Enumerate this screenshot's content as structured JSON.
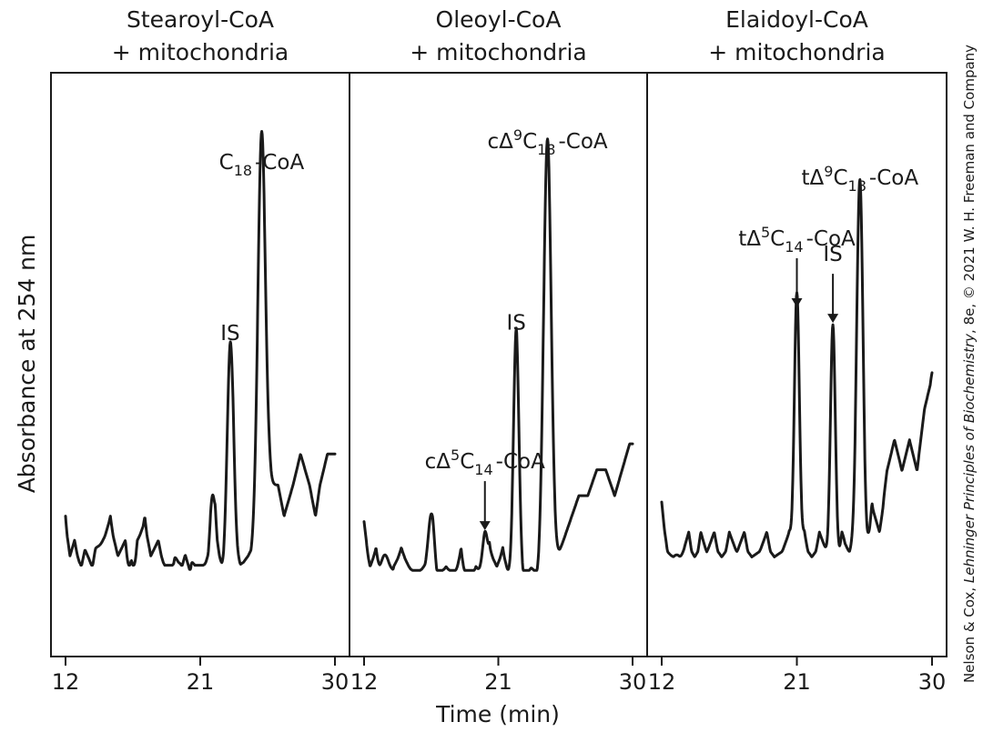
{
  "chart_data": {
    "type": "line",
    "ylabel": "Absorbance at 254 nm",
    "xlabel": "Time (min)",
    "xlim": [
      12,
      30
    ],
    "xticks": [
      12,
      21,
      30
    ],
    "ylim": [
      0,
      100
    ],
    "credit": {
      "prefix": "Nelson & Cox, ",
      "title": "Lehninger Principles of Biochemistry",
      "suffix": ", 8e, © 2021 W. H. Freeman and Company"
    },
    "panels": [
      {
        "title_line1": "Stearoyl-CoA",
        "title_line2": "+ mitochondria",
        "baseline": [
          [
            12,
            8
          ],
          [
            12.3,
            10
          ],
          [
            12.6,
            9
          ],
          [
            13,
            11
          ],
          [
            13.3,
            15
          ],
          [
            13.6,
            13
          ],
          [
            14,
            10
          ],
          [
            14.5,
            9
          ],
          [
            15,
            8
          ],
          [
            15.5,
            10
          ],
          [
            16,
            9
          ],
          [
            16.4,
            13
          ],
          [
            16.8,
            9
          ],
          [
            17.3,
            8
          ],
          [
            17.7,
            10
          ],
          [
            18.2,
            9
          ],
          [
            18.8,
            12
          ],
          [
            19.3,
            10
          ],
          [
            19.7,
            11
          ],
          [
            20,
            14
          ],
          [
            20.4,
            10
          ],
          [
            20.8,
            12
          ],
          [
            21.3,
            11
          ],
          [
            21.7,
            9
          ],
          [
            22,
            8
          ],
          [
            22.7,
            13
          ],
          [
            23.2,
            9
          ],
          [
            23.7,
            11
          ],
          [
            24.2,
            10
          ],
          [
            24.7,
            9
          ],
          [
            25.2,
            8
          ],
          [
            25.6,
            7
          ],
          [
            26.2,
            7
          ],
          [
            26.6,
            8
          ],
          [
            27.2,
            7
          ],
          [
            27.7,
            6
          ],
          [
            28.3,
            7
          ],
          [
            28.7,
            8
          ],
          [
            29,
            7
          ],
          [
            29.5,
            6
          ],
          [
            30,
            6
          ]
        ],
        "peaks": [
          {
            "t": 23.0,
            "h": 53,
            "w": 0.45,
            "label": "IS"
          },
          {
            "t": 25.1,
            "h": 86,
            "w": 0.55,
            "label_prefix": "C",
            "label_sub": "18",
            "label_suffix": "-CoA"
          },
          {
            "t": 21.8,
            "h": 18,
            "w": 0.3
          },
          {
            "t": 14.0,
            "h": 12,
            "w": 0.5
          },
          {
            "t": 16.9,
            "h": 7,
            "w": 0.3
          },
          {
            "t": 19.0,
            "h": 8,
            "w": 0.3
          },
          {
            "t": 20.2,
            "h": 9,
            "w": 0.3
          }
        ]
      },
      {
        "title_line1": "Oleoyl-CoA",
        "title_line2": "+ mitochondria",
        "baseline": [
          [
            12,
            7
          ],
          [
            12.4,
            9
          ],
          [
            12.8,
            8
          ],
          [
            13.2,
            10
          ],
          [
            13.6,
            12
          ],
          [
            14,
            9
          ],
          [
            14.5,
            8
          ],
          [
            15,
            9
          ],
          [
            15.5,
            10
          ],
          [
            16,
            9
          ],
          [
            16.6,
            8
          ],
          [
            17,
            10
          ],
          [
            17.5,
            9
          ],
          [
            18,
            10
          ],
          [
            18.5,
            8
          ],
          [
            19,
            11
          ],
          [
            19.5,
            9
          ],
          [
            20,
            10
          ],
          [
            20.4,
            8
          ],
          [
            20.9,
            9
          ],
          [
            21.3,
            8
          ],
          [
            21.8,
            10
          ],
          [
            22.2,
            9
          ],
          [
            22.7,
            11
          ],
          [
            23.2,
            9
          ],
          [
            23.6,
            10
          ],
          [
            24,
            8
          ],
          [
            24.6,
            9
          ],
          [
            25.2,
            8
          ],
          [
            25.8,
            7
          ],
          [
            26.4,
            6
          ],
          [
            27,
            6
          ],
          [
            27.6,
            5
          ],
          [
            28.2,
            5
          ],
          [
            28.8,
            6
          ],
          [
            29.3,
            5
          ],
          [
            29.8,
            4
          ],
          [
            30,
            4
          ]
        ],
        "peaks": [
          {
            "t": 22.2,
            "h": 55,
            "w": 0.4,
            "label": "IS"
          },
          {
            "t": 24.3,
            "h": 90,
            "w": 0.55,
            "label_prefix": "cΔ",
            "label_sup": "9",
            "label_mid": "C",
            "label_sub": "18",
            "label_suffix": "-CoA"
          },
          {
            "t": 20.1,
            "h": 17,
            "w": 0.35,
            "label_prefix": "cΔ",
            "label_sup": "5",
            "label_mid": "C",
            "label_sub": "14",
            "label_suffix": "-CoA",
            "arrow": true
          },
          {
            "t": 16.5,
            "h": 18,
            "w": 0.4
          },
          {
            "t": 13.4,
            "h": 14,
            "w": 0.5
          },
          {
            "t": 23.3,
            "h": 10,
            "w": 0.3
          }
        ]
      },
      {
        "title_line1": "Elaidoyl-CoA",
        "title_line2": "+ mitochondria",
        "baseline": [
          [
            12,
            8
          ],
          [
            12.4,
            10
          ],
          [
            12.7,
            11
          ],
          [
            13,
            13
          ],
          [
            13.4,
            10
          ],
          [
            13.8,
            9
          ],
          [
            14.2,
            11
          ],
          [
            14.6,
            9
          ],
          [
            15,
            10
          ],
          [
            15.5,
            9
          ],
          [
            16,
            11
          ],
          [
            16.5,
            9
          ],
          [
            17,
            10
          ],
          [
            17.5,
            9
          ],
          [
            18,
            11
          ],
          [
            18.5,
            10
          ],
          [
            19,
            9
          ],
          [
            19.5,
            11
          ],
          [
            20,
            10
          ],
          [
            20.5,
            9
          ],
          [
            21,
            10
          ],
          [
            21.5,
            9
          ],
          [
            22,
            11
          ],
          [
            22.5,
            9
          ],
          [
            23,
            10
          ],
          [
            23.5,
            12
          ],
          [
            24,
            9
          ],
          [
            24.5,
            10
          ],
          [
            25,
            9
          ],
          [
            25.5,
            11
          ],
          [
            26,
            8
          ],
          [
            26.5,
            9
          ],
          [
            27,
            7
          ],
          [
            27.5,
            6
          ],
          [
            28,
            7
          ],
          [
            28.5,
            6
          ],
          [
            29,
            7
          ],
          [
            29.5,
            5
          ],
          [
            30,
            4
          ]
        ],
        "peaks": [
          {
            "t": 21.0,
            "h": 60,
            "w": 0.35,
            "label_prefix": "tΔ",
            "label_sup": "5",
            "label_mid": "C",
            "label_sub": "14",
            "label_suffix": "-CoA",
            "arrow": true
          },
          {
            "t": 23.4,
            "h": 57,
            "w": 0.35,
            "label": "IS",
            "arrow": true
          },
          {
            "t": 25.2,
            "h": 83,
            "w": 0.45,
            "label_prefix": "tΔ",
            "label_sup": "9",
            "label_mid": "C",
            "label_sub": "18",
            "label_suffix": "-CoA"
          },
          {
            "t": 13.0,
            "h": 14,
            "w": 0.5
          },
          {
            "t": 16.5,
            "h": 10,
            "w": 0.35
          },
          {
            "t": 24.5,
            "h": 10,
            "w": 0.3
          },
          {
            "t": 26.4,
            "h": 8,
            "w": 0.3
          },
          {
            "t": 29.5,
            "h": 4,
            "w": 0.3
          }
        ]
      }
    ]
  }
}
